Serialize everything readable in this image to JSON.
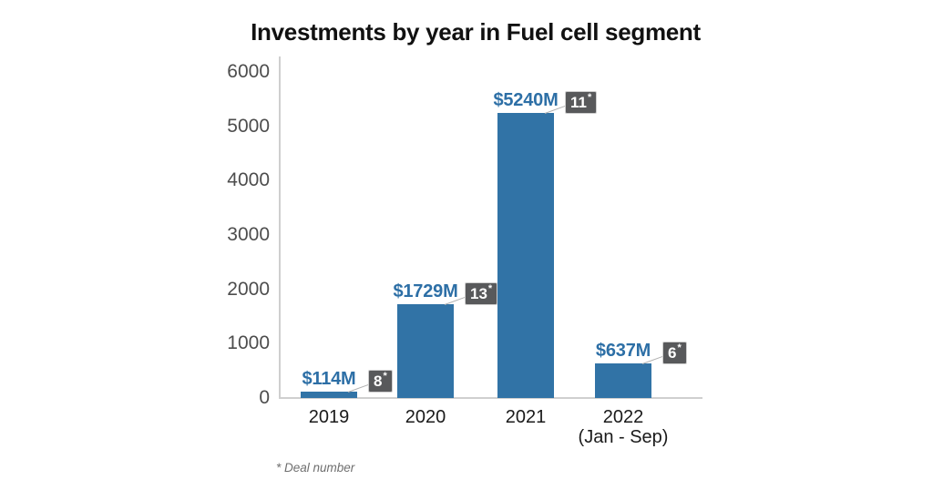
{
  "chart_data": {
    "type": "bar",
    "title": "Investments by year in Fuel cell segment",
    "categories": [
      "2019",
      "2020",
      "2021",
      "2022 (Jan - Sep)"
    ],
    "category_lines": [
      [
        "2019"
      ],
      [
        "2020"
      ],
      [
        "2021"
      ],
      [
        "2022",
        "(Jan - Sep)"
      ]
    ],
    "values": [
      114,
      1729,
      5240,
      637
    ],
    "value_labels": [
      "$114M",
      "$1729M",
      "$5240M",
      "$637M"
    ],
    "deal_numbers": [
      8,
      13,
      11,
      6
    ],
    "footnote_marker": "*",
    "footnote": "* Deal number",
    "ylim": [
      0,
      6000
    ],
    "yticks": [
      0,
      1000,
      2000,
      3000,
      4000,
      5000,
      6000
    ],
    "ytick_labels": [
      "0",
      "1000",
      "2000",
      "3000",
      "4000",
      "5000",
      "6000"
    ],
    "xlabel": "",
    "ylabel": "",
    "grid": "off",
    "legend": "none",
    "colors": {
      "bar": "#3173a6",
      "value_label": "#2d6fa6",
      "badge_background": "#58595b",
      "badge_border": "#cfcfcf",
      "badge_text": "#ffffff",
      "connector_line": "#b0b0b0",
      "axis_line": "#cfcfcf",
      "ytick_text": "#4d4d4d",
      "xtick_text": "#1a1a1a",
      "title_text": "#111111",
      "footnote_text": "#6f6f6f"
    }
  }
}
